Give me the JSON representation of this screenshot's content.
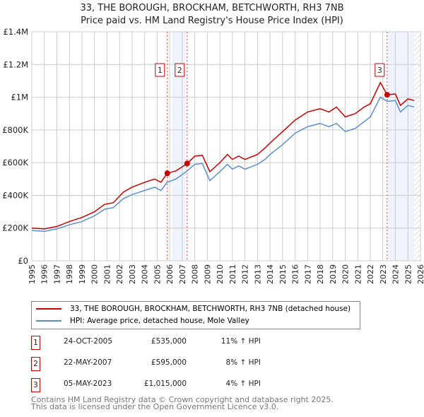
{
  "chart_data": {
    "type": "line",
    "title": "33, THE BOROUGH, BROCKHAM, BETCHWORTH, RH3 7NB",
    "subtitle": "Price paid vs. HM Land Registry's House Price Index (HPI)",
    "xlim": [
      1995,
      2026
    ],
    "ylim": [
      0,
      1400000
    ],
    "x_ticks": [
      "1995",
      "1996",
      "1997",
      "1998",
      "1999",
      "2000",
      "2001",
      "2002",
      "2003",
      "2004",
      "2005",
      "2006",
      "2007",
      "2008",
      "2009",
      "2010",
      "2011",
      "2012",
      "2013",
      "2014",
      "2015",
      "2016",
      "2017",
      "2018",
      "2019",
      "2020",
      "2021",
      "2022",
      "2023",
      "2024",
      "2025",
      "2026"
    ],
    "y_ticks": [
      {
        "v": 0,
        "l": "£0"
      },
      {
        "v": 200000,
        "l": "£200K"
      },
      {
        "v": 400000,
        "l": "£400K"
      },
      {
        "v": 600000,
        "l": "£600K"
      },
      {
        "v": 800000,
        "l": "£800K"
      },
      {
        "v": 1000000,
        "l": "£1M"
      },
      {
        "v": 1200000,
        "l": "£1.2M"
      },
      {
        "v": 1400000,
        "l": "£1.4M"
      }
    ],
    "grid": true,
    "series": [
      {
        "name": "33, THE BOROUGH, BROCKHAM, BETCHWORTH, RH3 7NB (detached house)",
        "color": "#cc0000",
        "x": [
          1995,
          1996,
          1997,
          1998,
          1999,
          2000,
          2000.8,
          2001.5,
          2002.3,
          2003,
          2004,
          2004.8,
          2005.3,
          2005.8,
          2006.5,
          2007.4,
          2008,
          2008.6,
          2009.2,
          2010,
          2010.6,
          2011,
          2011.5,
          2012,
          2013,
          2013.6,
          2014,
          2015,
          2016,
          2017,
          2018,
          2018.7,
          2019.3,
          2020,
          2020.8,
          2021.5,
          2022,
          2022.8,
          2023.35,
          2024,
          2024.4,
          2025,
          2025.5
        ],
        "y": [
          200000,
          195000,
          210000,
          240000,
          265000,
          300000,
          345000,
          355000,
          420000,
          450000,
          480000,
          500000,
          480000,
          535000,
          550000,
          595000,
          640000,
          645000,
          545000,
          600000,
          650000,
          620000,
          640000,
          620000,
          650000,
          690000,
          720000,
          790000,
          860000,
          910000,
          930000,
          910000,
          940000,
          880000,
          900000,
          940000,
          960000,
          1090000,
          1015000,
          1020000,
          950000,
          990000,
          980000
        ]
      },
      {
        "name": "HPI: Average price, detached house, Mole Valley",
        "color": "#5b8fd0",
        "x": [
          1995,
          1996,
          1997,
          1998,
          1999,
          2000,
          2000.8,
          2001.5,
          2002.3,
          2003,
          2004,
          2004.8,
          2005.3,
          2005.8,
          2006.5,
          2007.4,
          2008,
          2008.6,
          2009.2,
          2010,
          2010.6,
          2011,
          2011.5,
          2012,
          2013,
          2013.6,
          2014,
          2015,
          2016,
          2017,
          2018,
          2018.7,
          2019.3,
          2020,
          2020.8,
          2021.5,
          2022,
          2022.8,
          2023.35,
          2024,
          2024.4,
          2025,
          2025.5
        ],
        "y": [
          185000,
          180000,
          195000,
          220000,
          240000,
          275000,
          315000,
          325000,
          380000,
          405000,
          430000,
          450000,
          430000,
          480000,
          500000,
          550000,
          590000,
          595000,
          490000,
          545000,
          590000,
          560000,
          580000,
          560000,
          590000,
          620000,
          650000,
          710000,
          780000,
          820000,
          840000,
          820000,
          840000,
          790000,
          810000,
          850000,
          880000,
          1000000,
          975000,
          980000,
          910000,
          950000,
          940000
        ]
      }
    ],
    "sales": [
      {
        "label": "1",
        "x": 2005.81,
        "y": 535000
      },
      {
        "label": "2",
        "x": 2007.39,
        "y": 595000
      },
      {
        "label": "3",
        "x": 2023.34,
        "y": 1015000
      }
    ],
    "shaded_ranges": [
      [
        2006.2,
        2007.3
      ],
      [
        2023.4,
        2025.5
      ]
    ],
    "hatch_from": 2025.5
  },
  "legend": {
    "items": [
      {
        "label": "33, THE BOROUGH, BROCKHAM, BETCHWORTH, RH3 7NB (detached house)",
        "color": "#cc0000"
      },
      {
        "label": "HPI: Average price, detached house, Mole Valley",
        "color": "#5b8fd0"
      }
    ]
  },
  "transactions": [
    {
      "num": "1",
      "date": "24-OCT-2005",
      "price": "£535,000",
      "hpi": "11% ↑ HPI"
    },
    {
      "num": "2",
      "date": "22-MAY-2007",
      "price": "£595,000",
      "hpi": "8% ↑ HPI"
    },
    {
      "num": "3",
      "date": "05-MAY-2023",
      "price": "£1,015,000",
      "hpi": "4% ↑ HPI"
    }
  ],
  "footer": {
    "line1": "Contains HM Land Registry data © Crown copyright and database right 2025.",
    "line2": "This data is licensed under the Open Government Licence v3.0."
  }
}
